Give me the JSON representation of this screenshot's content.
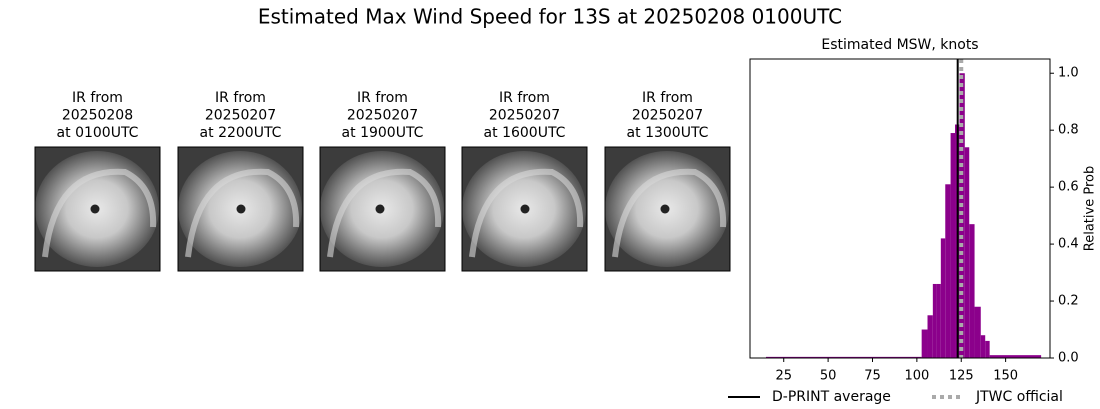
{
  "title": "Estimated Max Wind Speed for 13S at 20250208 0100UTC",
  "panels": [
    {
      "lines": [
        "IR from",
        "20250208",
        "at 0100UTC"
      ]
    },
    {
      "lines": [
        "IR from",
        "20250207",
        "at 2200UTC"
      ]
    },
    {
      "lines": [
        "IR from",
        "20250207",
        "at 1900UTC"
      ]
    },
    {
      "lines": [
        "IR from",
        "20250207",
        "at 1600UTC"
      ]
    },
    {
      "lines": [
        "IR from",
        "20250207",
        "at 1300UTC"
      ]
    }
  ],
  "chart_data": {
    "type": "histogram",
    "title": "Estimated MSW, knots",
    "y_label": "Relative Prob",
    "bins": [
      15,
      102.7,
      106,
      109,
      111,
      113.5,
      116,
      119,
      121.5,
      124,
      127,
      129.5,
      132.5,
      136,
      138.5,
      141,
      170
    ],
    "values": [
      0.004,
      0.1,
      0.15,
      0.26,
      0.26,
      0.42,
      0.61,
      0.79,
      0.82,
      1.0,
      0.74,
      0.47,
      0.18,
      0.08,
      0.06,
      0.01
    ],
    "color": "#8b008b",
    "xlim": [
      6,
      175
    ],
    "xticks": [
      25,
      50,
      75,
      100,
      125,
      150
    ],
    "ylim": [
      0,
      1.05
    ],
    "yticks": [
      {
        "value": 0,
        "label": "0.0"
      },
      {
        "value": 0.2,
        "label": "0.2"
      },
      {
        "value": 0.4,
        "label": "0.4"
      },
      {
        "value": 0.6,
        "label": "0.6"
      },
      {
        "value": 0.8,
        "label": "0.8"
      },
      {
        "value": 1,
        "label": "1.0"
      }
    ],
    "vlines": [
      {
        "name": "D-PRINT average",
        "value": 123,
        "color": "#000000",
        "style": "solid"
      },
      {
        "name": "JTWC official",
        "value": 125,
        "color": "#aaaaaa",
        "style": "dotted"
      }
    ],
    "y_axis_side": "right",
    "grid": false
  }
}
